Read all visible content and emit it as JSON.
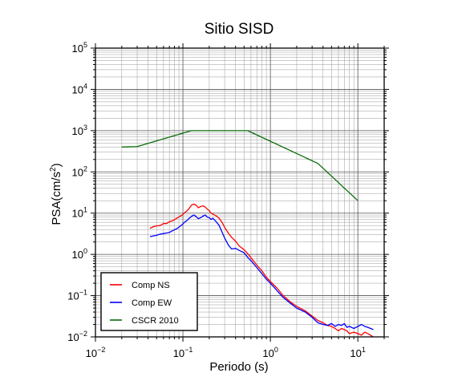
{
  "chart_data": {
    "type": "line",
    "title": "Sitio SISD",
    "xlabel": "Periodo (s)",
    "ylabel": {
      "base": "PSA(cm/s",
      "sup": "2",
      "tail": ")"
    },
    "x_scale": "log",
    "y_scale": "log",
    "xlim": [
      0.01,
      20
    ],
    "ylim": [
      0.01,
      100000
    ],
    "grid": true,
    "legend_position": "bottom-left",
    "x_ticks": [
      {
        "base": "10",
        "exp": "−2"
      },
      {
        "base": "10",
        "exp": "−1"
      },
      {
        "base": "10",
        "exp": "0"
      },
      {
        "base": "10",
        "exp": "1"
      }
    ],
    "y_ticks": [
      {
        "base": "10",
        "exp": "−2"
      },
      {
        "base": "10",
        "exp": "−1"
      },
      {
        "base": "10",
        "exp": "0"
      },
      {
        "base": "10",
        "exp": "1"
      },
      {
        "base": "10",
        "exp": "2"
      },
      {
        "base": "10",
        "exp": "3"
      },
      {
        "base": "10",
        "exp": "4"
      },
      {
        "base": "10",
        "exp": "5"
      }
    ],
    "series": [
      {
        "name": "Comp NS",
        "color": "#ff0000",
        "x": [
          0.042,
          0.046,
          0.05,
          0.055,
          0.06,
          0.065,
          0.07,
          0.077,
          0.085,
          0.093,
          0.1,
          0.106,
          0.112,
          0.118,
          0.125,
          0.133,
          0.142,
          0.15,
          0.16,
          0.17,
          0.18,
          0.19,
          0.2,
          0.21,
          0.22,
          0.24,
          0.26,
          0.28,
          0.3,
          0.33,
          0.36,
          0.4,
          0.44,
          0.5,
          0.55,
          0.6,
          0.7,
          0.8,
          0.9,
          1.0,
          1.2,
          1.4,
          1.7,
          2.0,
          2.5,
          3.0,
          3.5,
          4.0,
          4.5,
          5.0,
          5.5,
          6.0,
          6.5,
          7.0,
          7.5,
          8.0,
          9.0,
          10.0,
          11.0,
          12.0,
          13.0,
          14.0,
          15.0
        ],
        "values": [
          4.3,
          4.7,
          4.9,
          5.0,
          5.6,
          5.6,
          6.2,
          6.6,
          7.5,
          8.4,
          9.3,
          10.5,
          11.5,
          13.0,
          15.5,
          16.5,
          15.5,
          13.5,
          14.5,
          15.0,
          14.0,
          12.5,
          11.5,
          10.0,
          9.5,
          8.6,
          7.5,
          6.0,
          4.5,
          3.3,
          2.6,
          2.1,
          1.6,
          1.3,
          1.05,
          0.83,
          0.55,
          0.4,
          0.28,
          0.22,
          0.15,
          0.1,
          0.07,
          0.055,
          0.043,
          0.032,
          0.025,
          0.022,
          0.019,
          0.018,
          0.016,
          0.014,
          0.016,
          0.015,
          0.014,
          0.012,
          0.013,
          0.012,
          0.011,
          0.013,
          0.012,
          0.011,
          0.01
        ]
      },
      {
        "name": "Comp EW",
        "color": "#0000ff",
        "x": [
          0.042,
          0.046,
          0.05,
          0.055,
          0.06,
          0.065,
          0.07,
          0.077,
          0.085,
          0.093,
          0.1,
          0.106,
          0.112,
          0.118,
          0.125,
          0.133,
          0.142,
          0.15,
          0.16,
          0.17,
          0.18,
          0.19,
          0.2,
          0.21,
          0.22,
          0.24,
          0.26,
          0.28,
          0.3,
          0.33,
          0.36,
          0.4,
          0.44,
          0.5,
          0.55,
          0.6,
          0.7,
          0.8,
          0.9,
          1.0,
          1.2,
          1.4,
          1.7,
          2.0,
          2.5,
          3.0,
          3.5,
          4.0,
          4.5,
          5.0,
          5.5,
          6.0,
          6.5,
          7.0,
          7.5,
          8.0,
          9.0,
          10.0,
          11.0,
          12.0,
          13.0,
          14.0,
          15.0
        ],
        "values": [
          2.7,
          2.8,
          2.9,
          3.1,
          3.2,
          3.3,
          3.4,
          3.8,
          4.2,
          4.8,
          5.5,
          6.2,
          6.7,
          7.5,
          8.3,
          9.0,
          8.2,
          7.3,
          7.8,
          8.5,
          9.0,
          8.0,
          7.8,
          7.0,
          7.5,
          6.2,
          5.0,
          3.5,
          2.5,
          1.7,
          1.35,
          1.4,
          1.25,
          1.1,
          0.85,
          0.7,
          0.48,
          0.34,
          0.25,
          0.2,
          0.13,
          0.09,
          0.065,
          0.05,
          0.04,
          0.03,
          0.022,
          0.02,
          0.019,
          0.021,
          0.018,
          0.02,
          0.019,
          0.021,
          0.017,
          0.018,
          0.016,
          0.018,
          0.02,
          0.018,
          0.017,
          0.016,
          0.015
        ]
      },
      {
        "name": "CSCR 2010",
        "color": "#0a6b0a",
        "x": [
          0.02,
          0.03,
          0.125,
          0.55,
          3.5,
          10.0
        ],
        "values": [
          400,
          410,
          1000,
          1000,
          160,
          20
        ]
      }
    ]
  }
}
